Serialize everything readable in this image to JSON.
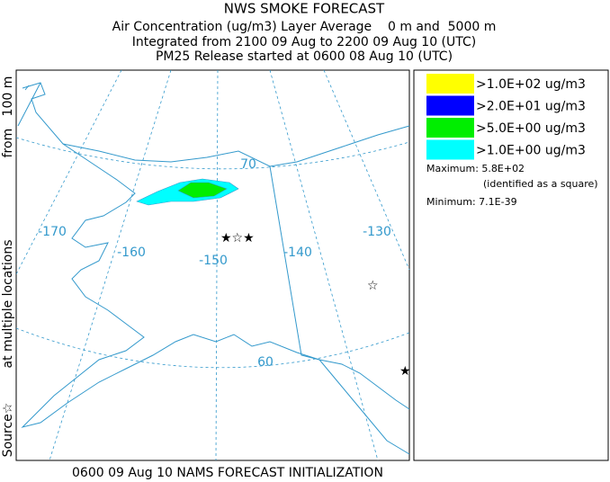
{
  "header": {
    "lines": [
      "NWS SMOKE FORECAST",
      "Air Concentration (ug/m3) Layer Average    0 m and  5000 m",
      "Integrated from 2100 09 Aug to 2200 09 Aug 10 (UTC)",
      "PM25 Release started at 0600 08 Aug 10 (UTC)"
    ]
  },
  "side_label": [
    "Source☆",
    "at multiple locations",
    "from   100 m"
  ],
  "legend": {
    "items": [
      {
        "label": ">1.0E+02 ug/m3",
        "color": "#ffff00"
      },
      {
        "label": ">2.0E+01 ug/m3",
        "color": "#0000ff"
      },
      {
        "label": ">5.0E+00 ug/m3",
        "color": "#00ee00"
      },
      {
        "label": ">1.0E+00 ug/m3",
        "color": "#00ffff"
      }
    ]
  },
  "stats": {
    "maximum": "Maximum: 5.8E+02",
    "maximum_note": "(identified as a square)",
    "minimum": "Minimum: 7.1E-39"
  },
  "map": {
    "labels": [
      "-170",
      "-160",
      "-150",
      "-140",
      "-130",
      "70",
      "60"
    ]
  },
  "footer": "0600 09 Aug 10 NAMS FORECAST INITIALIZATION"
}
